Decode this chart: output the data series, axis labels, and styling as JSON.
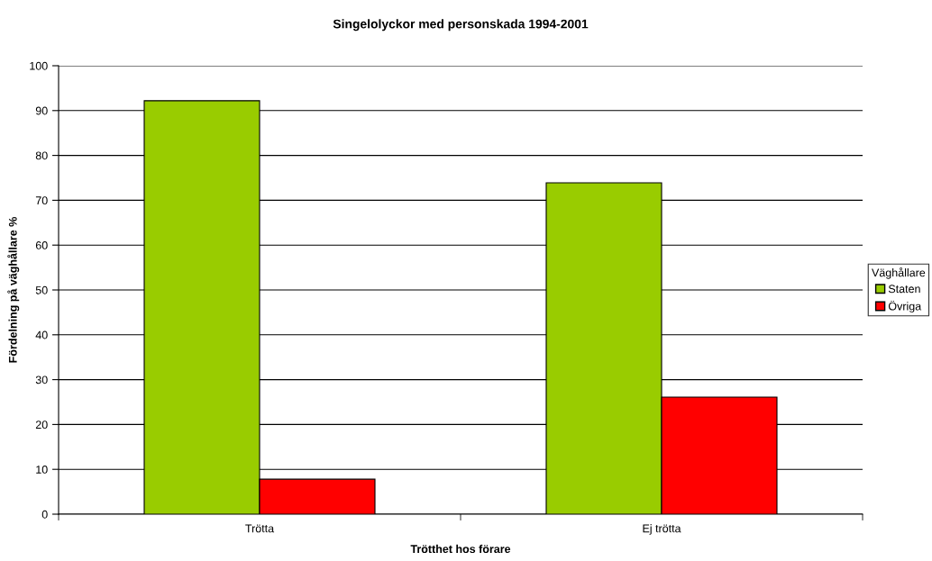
{
  "chart_data": {
    "type": "bar",
    "title": "Singelolyckor med personskada 1994-2001",
    "xlabel": "Trötthet hos förare",
    "ylabel": "Fördelning på väghållare %",
    "legend_title": "Väghållare",
    "categories": [
      "Trötta",
      "Ej trötta"
    ],
    "series": [
      {
        "name": "Staten",
        "color": "#99cc00",
        "values": [
          92.2,
          73.9
        ]
      },
      {
        "name": "Övriga",
        "color": "#ff0000",
        "values": [
          7.8,
          26.1
        ]
      }
    ],
    "ylim": [
      0,
      100
    ],
    "yticks": [
      0,
      10,
      20,
      30,
      40,
      50,
      60,
      70,
      80,
      90,
      100
    ],
    "grid": "y",
    "legend": "right"
  }
}
